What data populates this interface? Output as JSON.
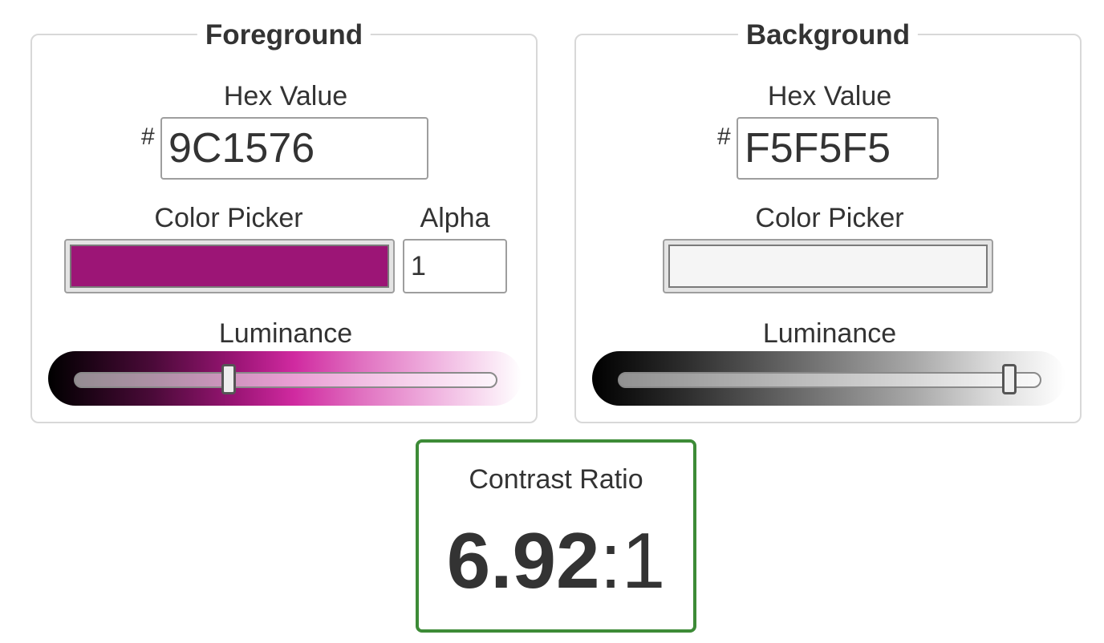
{
  "foreground": {
    "title": "Foreground",
    "hex_label": "Hex Value",
    "hash_symbol": "#",
    "hex_value": "9C1576",
    "picker_label": "Color Picker",
    "picker_color": "#9C1576",
    "alpha_label": "Alpha",
    "alpha_value": "1",
    "luminance_label": "Luminance",
    "luminance_level_percent": 36
  },
  "background": {
    "title": "Background",
    "hex_label": "Hex Value",
    "hash_symbol": "#",
    "hex_value": "F5F5F5",
    "picker_label": "Color Picker",
    "picker_color": "#F5F5F5",
    "luminance_label": "Luminance",
    "luminance_level_percent": 94
  },
  "contrast": {
    "label": "Contrast Ratio",
    "ratio_number": "6.92",
    "ratio_suffix": ":1",
    "border_color": "#3D8B37"
  }
}
